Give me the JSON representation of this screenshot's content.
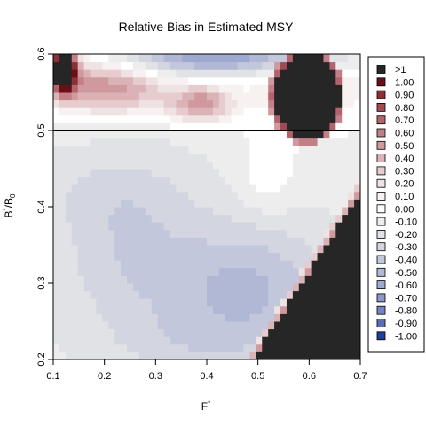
{
  "chart_data": {
    "type": "heatmap",
    "title": "Relative Bias in Estimated MSY",
    "xlabel": "F",
    "xlabel_sup": "*",
    "ylabel_main": "B",
    "ylabel_sup": "*",
    "ylabel_slash": "/B",
    "ylabel_sub": "0",
    "xlim": [
      0.1,
      0.7
    ],
    "ylim": [
      0.2,
      0.6
    ],
    "x_ticks": [
      "0.1",
      "0.2",
      "0.3",
      "0.4",
      "0.5",
      "0.6",
      "0.7"
    ],
    "y_ticks": [
      "0.2",
      "0.3",
      "0.4",
      "0.5",
      "0.6"
    ],
    "reference_line_y": 0.5,
    "legend": {
      "placement": "right",
      "entries": [
        {
          "label": ">1",
          "color": "#262626"
        },
        {
          "label": "1.00",
          "color": "#6b0f16"
        },
        {
          "label": "0.90",
          "color": "#8c2f37"
        },
        {
          "label": "0.80",
          "color": "#a04a52"
        },
        {
          "label": "0.70",
          "color": "#b3646b"
        },
        {
          "label": "0.60",
          "color": "#c27f85"
        },
        {
          "label": "0.50",
          "color": "#cf999d"
        },
        {
          "label": "0.40",
          "color": "#dbb3b6"
        },
        {
          "label": "0.30",
          "color": "#e6ccce"
        },
        {
          "label": "0.20",
          "color": "#efe2e3"
        },
        {
          "label": "0.10",
          "color": "#f7f1f1"
        },
        {
          "label": "0.00",
          "color": "#ffffff"
        },
        {
          "label": "-0.10",
          "color": "#ededed"
        },
        {
          "label": "-0.20",
          "color": "#e1e2e6"
        },
        {
          "label": "-0.30",
          "color": "#d3d6e1"
        },
        {
          "label": "-0.40",
          "color": "#c2c7dc"
        },
        {
          "label": "-0.50",
          "color": "#b0b8d6"
        },
        {
          "label": "-0.60",
          "color": "#9ea8d1"
        },
        {
          "label": "-0.70",
          "color": "#8b98ca"
        },
        {
          "label": "-0.80",
          "color": "#7584c1"
        },
        {
          "label": "-0.90",
          "color": "#5b6eb5"
        },
        {
          "label": "-1.00",
          "color": "#1f3d99"
        }
      ]
    }
  }
}
